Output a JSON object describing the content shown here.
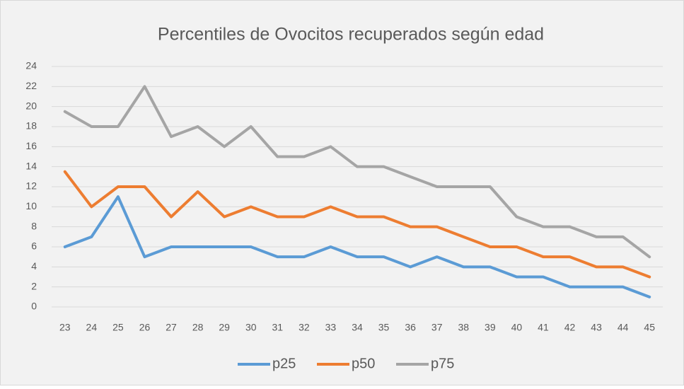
{
  "chart_data": {
    "type": "line",
    "title": "Percentiles de Ovocitos recuperados según edad",
    "categories": [
      23,
      24,
      25,
      26,
      27,
      28,
      29,
      30,
      31,
      32,
      33,
      34,
      35,
      36,
      37,
      38,
      39,
      40,
      41,
      42,
      43,
      44,
      45
    ],
    "series": [
      {
        "name": "p25",
        "color": "#5b9bd5",
        "values": [
          6,
          7,
          11,
          5,
          6,
          6,
          6,
          6,
          5,
          5,
          6,
          5,
          5,
          4,
          5,
          4,
          4,
          3,
          3,
          2,
          2,
          2,
          1
        ]
      },
      {
        "name": "p50",
        "color": "#ed7d31",
        "values": [
          13.5,
          10,
          12,
          12,
          9,
          11.5,
          9,
          10,
          9,
          9,
          10,
          9,
          9,
          8,
          8,
          7,
          6,
          6,
          5,
          5,
          4,
          4,
          3
        ]
      },
      {
        "name": "p75",
        "color": "#a5a5a5",
        "values": [
          19.5,
          18,
          18,
          22,
          17,
          18,
          16,
          18,
          15,
          15,
          16,
          14,
          14,
          13,
          12,
          12,
          12,
          9,
          8,
          8,
          7,
          7,
          5
        ]
      }
    ],
    "ylim": [
      0,
      24
    ],
    "yticks": [
      0,
      2,
      4,
      6,
      8,
      10,
      12,
      14,
      16,
      18,
      20,
      22,
      24
    ],
    "grid": true,
    "legend": "bottom"
  }
}
